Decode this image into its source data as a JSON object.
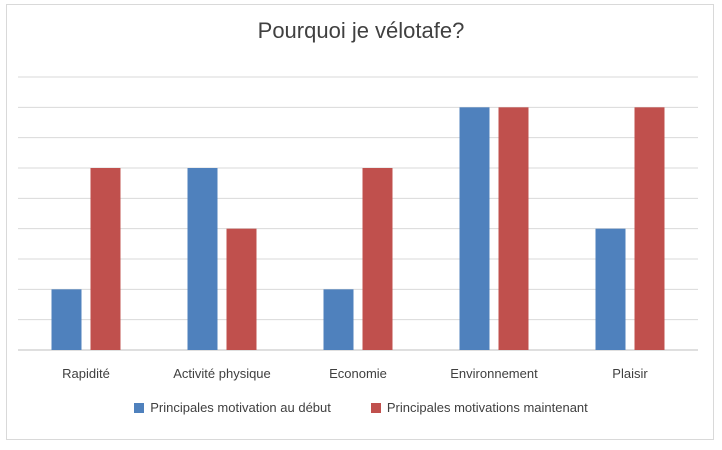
{
  "chart_data": {
    "type": "bar",
    "title": "Pourquoi je vélotafe?",
    "categories": [
      "Rapidité",
      "Activité physique",
      "Economie",
      "Environnement",
      "Plaisir"
    ],
    "series": [
      {
        "name": "Principales motivation au début",
        "color": "#4f81bd",
        "values": [
          2,
          6,
          2,
          8,
          4
        ]
      },
      {
        "name": "Principales motivations maintenant",
        "color": "#c0504d",
        "values": [
          6,
          4,
          6,
          8,
          8
        ]
      }
    ],
    "ylim": [
      0,
      9
    ],
    "grid": true,
    "legend": "bottom"
  }
}
